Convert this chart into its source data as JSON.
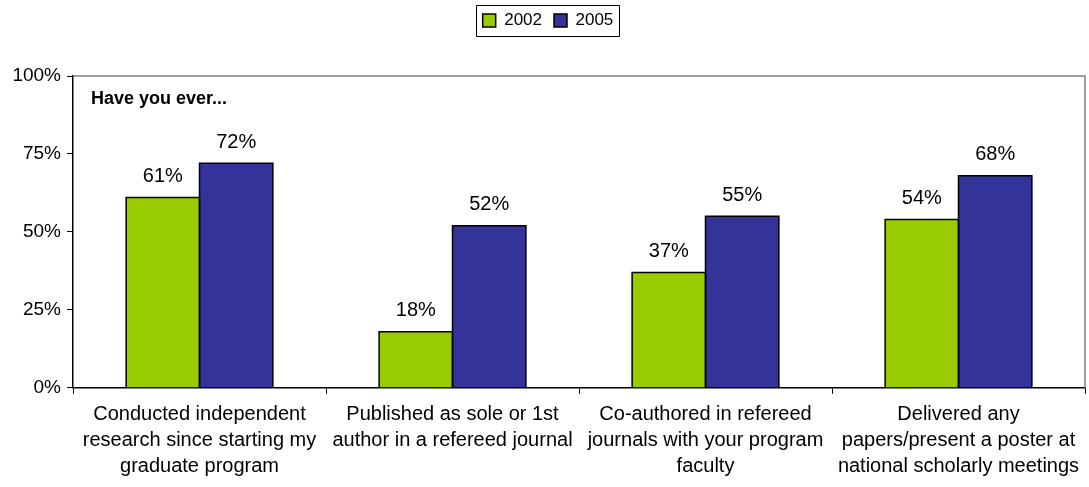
{
  "chart_data": {
    "type": "bar",
    "categories": [
      "Conducted independent research since starting my graduate program",
      "Published as sole or 1st author in a refereed journal",
      "Co-authored in refereed journals with your program faculty",
      "Delivered any papers/present a poster at national scholarly meetings"
    ],
    "series": [
      {
        "name": "2002",
        "color": "#99cc00",
        "values": [
          61,
          18,
          37,
          54
        ],
        "value_labels": [
          "61%",
          "18%",
          "37%",
          "54%"
        ]
      },
      {
        "name": "2005",
        "color": "#333399",
        "values": [
          72,
          52,
          55,
          68
        ],
        "value_labels": [
          "72%",
          "52%",
          "55%",
          "68%"
        ]
      }
    ],
    "ylim": [
      0,
      100
    ],
    "yticks": [
      {
        "value": 0,
        "label": "0%"
      },
      {
        "value": 25,
        "label": "25%"
      },
      {
        "value": 50,
        "label": "50%"
      },
      {
        "value": 75,
        "label": "75%"
      },
      {
        "value": 100,
        "label": "100%"
      }
    ],
    "legend": "top",
    "annotations": [
      "Have you ever..."
    ]
  }
}
